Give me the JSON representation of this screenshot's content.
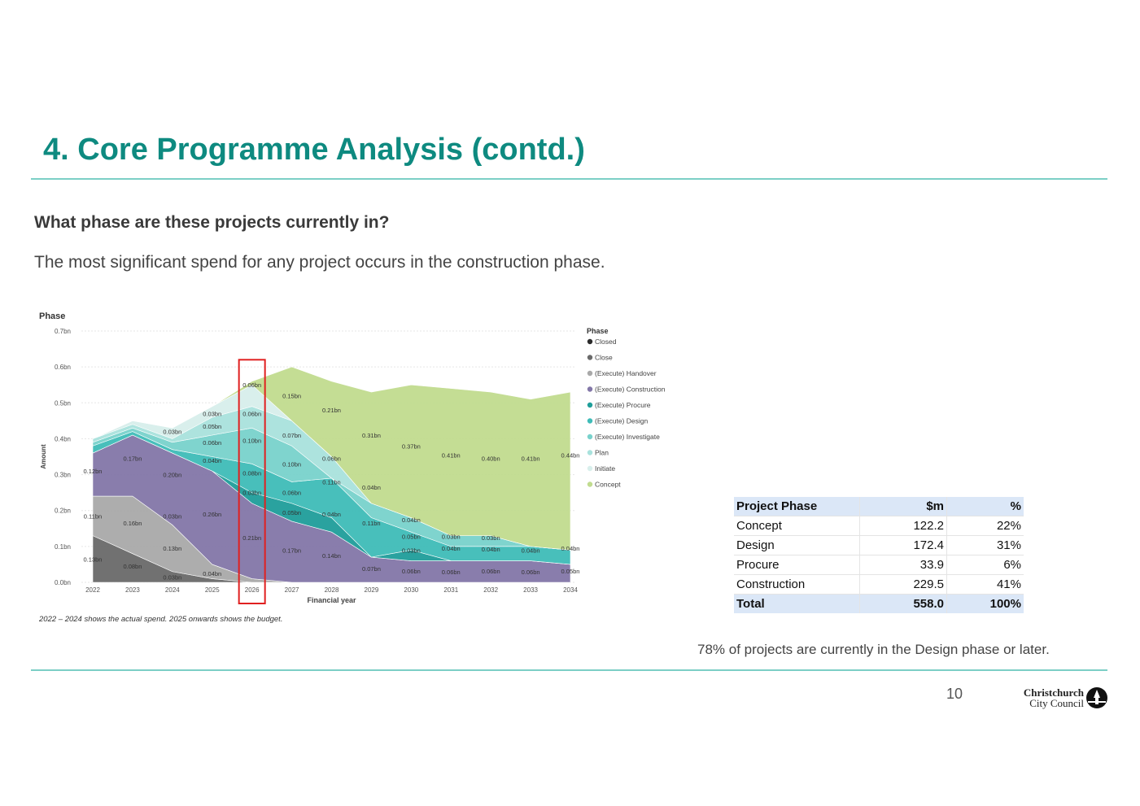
{
  "slide": {
    "title": "4. Core Programme Analysis (contd.)",
    "question": "What phase are these projects currently in?",
    "statement": "The most significant spend for any project occurs in the construction phase.",
    "footnote": "78% of projects are currently in the Design phase or later.",
    "page_number": "10",
    "logo_line1": "Christchurch",
    "logo_line2": "City Council"
  },
  "table": {
    "headers": [
      "Project Phase",
      "$m",
      "%"
    ],
    "rows": [
      [
        "Concept",
        "122.2",
        "22%"
      ],
      [
        "Design",
        "172.4",
        "31%"
      ],
      [
        "Procure",
        "33.9",
        "6%"
      ],
      [
        "Construction",
        "229.5",
        "41%"
      ]
    ],
    "total": [
      "Total",
      "558.0",
      "100%"
    ]
  },
  "colors": {
    "accent": "#0e8a80",
    "rule": "#7ccfc6",
    "table_header": "#dbe7f7",
    "highlight_box": "#e02020"
  },
  "chart_data": {
    "type": "area",
    "stacked": true,
    "title": "Phase",
    "xlabel": "Financial year",
    "ylabel": "Amount",
    "note": "2022 – 2024 shows the actual spend.  2025 onwards shows the budget.",
    "ylim": [
      0,
      0.7
    ],
    "yticks": [
      "0.0bn",
      "0.1bn",
      "0.2bn",
      "0.3bn",
      "0.4bn",
      "0.5bn",
      "0.6bn",
      "0.7bn"
    ],
    "grid": true,
    "legend_position": "right",
    "legend_title": "Phase",
    "highlight_category": "2026",
    "categories": [
      "2022",
      "2023",
      "2024",
      "2025",
      "2026",
      "2027",
      "2028",
      "2029",
      "2030",
      "2031",
      "2032",
      "2033",
      "2034"
    ],
    "series": [
      {
        "name": "Closed",
        "color": "#2b2b2b",
        "values": [
          0.0,
          0.0,
          0.0,
          0.0,
          0.0,
          0.0,
          0.0,
          0.0,
          0.0,
          0.0,
          0.0,
          0.0,
          0.0
        ]
      },
      {
        "name": "Close",
        "color": "#6a6a6a",
        "values": [
          0.13,
          0.08,
          0.03,
          0.01,
          0.0,
          0.0,
          0.0,
          0.0,
          0.0,
          0.0,
          0.0,
          0.0,
          0.0
        ]
      },
      {
        "name": "(Execute) Handover",
        "color": "#a9a9a9",
        "values": [
          0.11,
          0.16,
          0.13,
          0.04,
          0.01,
          0.0,
          0.0,
          0.0,
          0.0,
          0.0,
          0.0,
          0.0,
          0.0
        ]
      },
      {
        "name": "(Execute) Construction",
        "color": "#8377a8",
        "values": [
          0.12,
          0.17,
          0.2,
          0.26,
          0.21,
          0.17,
          0.14,
          0.07,
          0.06,
          0.06,
          0.06,
          0.06,
          0.05
        ]
      },
      {
        "name": "(Execute) Procure",
        "color": "#1f9e9a",
        "values": [
          0.0,
          0.0,
          0.0,
          0.0,
          0.03,
          0.05,
          0.04,
          0.0,
          0.03,
          0.0,
          0.0,
          0.0,
          0.0
        ]
      },
      {
        "name": "(Execute) Design",
        "color": "#3fbcb8",
        "values": [
          0.02,
          0.01,
          0.01,
          0.04,
          0.08,
          0.06,
          0.11,
          0.11,
          0.05,
          0.04,
          0.04,
          0.04,
          0.04
        ]
      },
      {
        "name": "(Execute) Investigate",
        "color": "#79d2cc",
        "values": [
          0.01,
          0.01,
          0.02,
          0.06,
          0.1,
          0.1,
          0.0,
          0.04,
          0.04,
          0.03,
          0.03,
          0.0,
          0.0
        ]
      },
      {
        "name": "Plan",
        "color": "#a9e2dd",
        "values": [
          0.01,
          0.01,
          0.01,
          0.05,
          0.06,
          0.07,
          0.06,
          0.0,
          0.0,
          0.0,
          0.0,
          0.0,
          0.0
        ]
      },
      {
        "name": "Initiate",
        "color": "#d8efec",
        "values": [
          0.0,
          0.01,
          0.03,
          0.03,
          0.06,
          0.0,
          0.0,
          0.0,
          0.0,
          0.0,
          0.0,
          0.0,
          0.0
        ]
      },
      {
        "name": "Concept",
        "color": "#c1dc8f",
        "values": [
          0.0,
          0.0,
          0.0,
          0.0,
          0.01,
          0.15,
          0.21,
          0.31,
          0.37,
          0.41,
          0.4,
          0.41,
          0.44
        ]
      }
    ],
    "data_labels": [
      {
        "text": "0.06bn",
        "x": "2026",
        "y": 0.55
      },
      {
        "text": "0.15bn",
        "x": "2027",
        "y": 0.52
      },
      {
        "text": "0.21bn",
        "x": "2028",
        "y": 0.48
      },
      {
        "text": "0.03bn",
        "x": "2025",
        "y": 0.47
      },
      {
        "text": "0.06bn",
        "x": "2026",
        "y": 0.47
      },
      {
        "text": "0.05bn",
        "x": "2025",
        "y": 0.435
      },
      {
        "text": "0.03bn",
        "x": "2024",
        "y": 0.42
      },
      {
        "text": "0.07bn",
        "x": "2027",
        "y": 0.41
      },
      {
        "text": "0.31bn",
        "x": "2029",
        "y": 0.41
      },
      {
        "text": "0.06bn",
        "x": "2025",
        "y": 0.39
      },
      {
        "text": "0.10bn",
        "x": "2026",
        "y": 0.395
      },
      {
        "text": "0.37bn",
        "x": "2030",
        "y": 0.38
      },
      {
        "text": "0.17bn",
        "x": "2023",
        "y": 0.345
      },
      {
        "text": "0.04bn",
        "x": "2025",
        "y": 0.34
      },
      {
        "text": "0.06bn",
        "x": "2028",
        "y": 0.345
      },
      {
        "text": "0.41bn",
        "x": "2031",
        "y": 0.355
      },
      {
        "text": "0.40bn",
        "x": "2032",
        "y": 0.345
      },
      {
        "text": "0.41bn",
        "x": "2033",
        "y": 0.345
      },
      {
        "text": "0.44bn",
        "x": "2034",
        "y": 0.355
      },
      {
        "text": "0.10bn",
        "x": "2027",
        "y": 0.33
      },
      {
        "text": "0.12bn",
        "x": "2022",
        "y": 0.31
      },
      {
        "text": "0.20bn",
        "x": "2024",
        "y": 0.3
      },
      {
        "text": "0.08bn",
        "x": "2026",
        "y": 0.305
      },
      {
        "text": "0.11bn",
        "x": "2028",
        "y": 0.28
      },
      {
        "text": "0.04bn",
        "x": "2029",
        "y": 0.265
      },
      {
        "text": "0.03bn",
        "x": "2026",
        "y": 0.25
      },
      {
        "text": "0.06bn",
        "x": "2027",
        "y": 0.25
      },
      {
        "text": "0.05bn",
        "x": "2027",
        "y": 0.195
      },
      {
        "text": "0.04bn",
        "x": "2028",
        "y": 0.19
      },
      {
        "text": "0.11bn",
        "x": "2022",
        "y": 0.185
      },
      {
        "text": "0.03bn",
        "x": "2024",
        "y": 0.185
      },
      {
        "text": "0.26bn",
        "x": "2025",
        "y": 0.19
      },
      {
        "text": "0.16bn",
        "x": "2023",
        "y": 0.165
      },
      {
        "text": "0.11bn",
        "x": "2029",
        "y": 0.165
      },
      {
        "text": "0.04bn",
        "x": "2030",
        "y": 0.175
      },
      {
        "text": "0.05bn",
        "x": "2030",
        "y": 0.128
      },
      {
        "text": "0.03bn",
        "x": "2031",
        "y": 0.128
      },
      {
        "text": "0.03bn",
        "x": "2032",
        "y": 0.125
      },
      {
        "text": "0.21bn",
        "x": "2026",
        "y": 0.125
      },
      {
        "text": "0.13bn",
        "x": "2024",
        "y": 0.095
      },
      {
        "text": "0.04bn",
        "x": "2031",
        "y": 0.095
      },
      {
        "text": "0.04bn",
        "x": "2032",
        "y": 0.093
      },
      {
        "text": "0.04bn",
        "x": "2033",
        "y": 0.09
      },
      {
        "text": "0.04bn",
        "x": "2034",
        "y": 0.095
      },
      {
        "text": "0.03bn",
        "x": "2030",
        "y": 0.09
      },
      {
        "text": "0.17bn",
        "x": "2027",
        "y": 0.09
      },
      {
        "text": "0.14bn",
        "x": "2028",
        "y": 0.075
      },
      {
        "text": "0.13bn",
        "x": "2022",
        "y": 0.065
      },
      {
        "text": "0.08bn",
        "x": "2023",
        "y": 0.045
      },
      {
        "text": "0.07bn",
        "x": "2029",
        "y": 0.038
      },
      {
        "text": "0.06bn",
        "x": "2030",
        "y": 0.032
      },
      {
        "text": "0.06bn",
        "x": "2031",
        "y": 0.03
      },
      {
        "text": "0.06bn",
        "x": "2032",
        "y": 0.032
      },
      {
        "text": "0.06bn",
        "x": "2033",
        "y": 0.03
      },
      {
        "text": "0.05bn",
        "x": "2034",
        "y": 0.032
      },
      {
        "text": "0.04bn",
        "x": "2025",
        "y": 0.025
      },
      {
        "text": "0.03bn",
        "x": "2024",
        "y": 0.015
      }
    ]
  }
}
